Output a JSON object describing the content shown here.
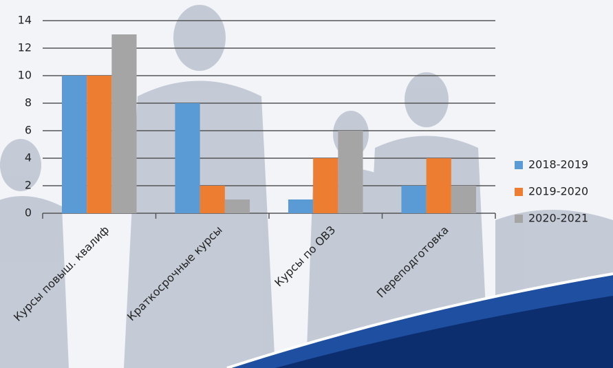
{
  "chart_data": {
    "type": "bar",
    "categories": [
      "Курсы повыш. квалиф",
      "Краткосрочные курсы",
      "Курсы по ОВЗ",
      "Переподготовка"
    ],
    "series": [
      {
        "name": "2018-2019",
        "color": "#5b9bd5",
        "values": [
          10,
          8,
          1,
          2
        ]
      },
      {
        "name": "2019-2020",
        "color": "#ed7d31",
        "values": [
          10,
          2,
          4,
          4
        ]
      },
      {
        "name": "2020-2021",
        "color": "#a5a5a5",
        "values": [
          13,
          1,
          6,
          2
        ]
      }
    ],
    "ylim": [
      0,
      14
    ],
    "yticks": [
      0,
      2,
      4,
      6,
      8,
      10,
      12,
      14
    ],
    "grid": true,
    "legend": "right"
  }
}
